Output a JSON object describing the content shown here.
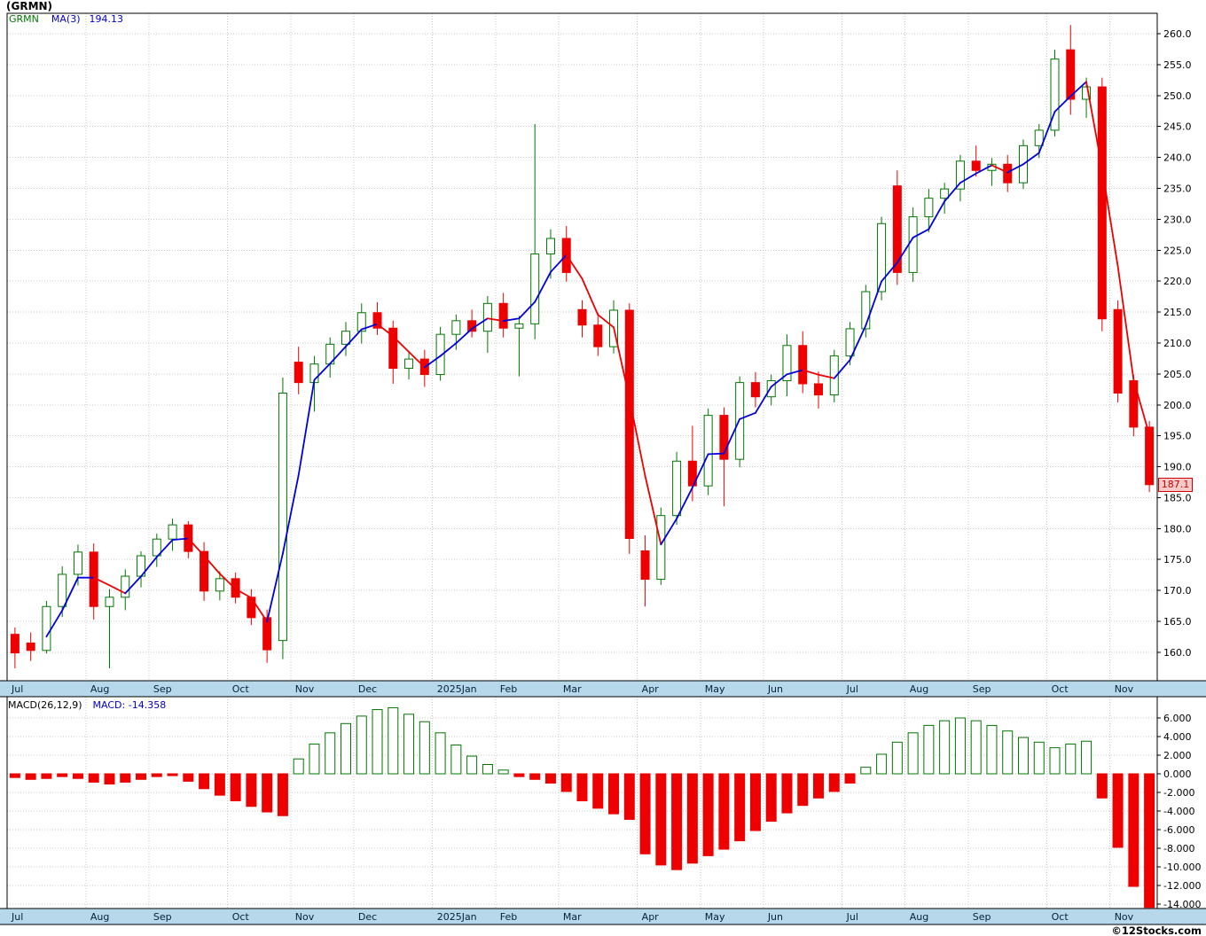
{
  "title": "(GRMN)",
  "watermark": "©12Stocks.com",
  "legend": {
    "symbol": "GRMN",
    "ma_label": "MA(3)",
    "ma_value": "194.13"
  },
  "macd_legend": {
    "label": "MACD(26,12,9)",
    "value_prefix": "MACD:",
    "value": "-14.358"
  },
  "price_tag": {
    "text": "187.1",
    "value": 187.1
  },
  "colors": {
    "up": "#007700",
    "down": "#ee0000",
    "ma_up": "#0000dd",
    "ma_down": "#ee0000",
    "band": "#b7d8ea",
    "band_text": "#05223c",
    "grid": "#c9c9c9",
    "border": "#000000"
  },
  "chart_data": {
    "type": "candlestick",
    "symbol": "GRMN",
    "interval": "weekly",
    "title": "(GRMN)",
    "overlay": "MA(3)",
    "ma_last": 194.13,
    "indicator": "MACD(26,12,9)",
    "macd_last": -14.358,
    "price_axis": {
      "min": 155.4,
      "max": 263.3,
      "ticks": [
        "260.0",
        "255.0",
        "250.0",
        "245.0",
        "240.0",
        "235.0",
        "230.0",
        "225.0",
        "220.0",
        "215.0",
        "210.0",
        "205.0",
        "200.0",
        "195.0",
        "190.0",
        "185.0",
        "180.0",
        "175.0",
        "170.0",
        "165.0",
        "160.0"
      ]
    },
    "macd_axis": {
      "min": -14.5,
      "max": 8.3,
      "ticks": [
        "6.000",
        "4.000",
        "2.000",
        "0.000",
        "-2.000",
        "-4.000",
        "-6.000",
        "-8.000",
        "-10.000",
        "-12.000",
        "-14.000"
      ]
    },
    "months": [
      {
        "label": "Jul",
        "start": 0
      },
      {
        "label": "Aug",
        "start": 5
      },
      {
        "label": "Sep",
        "start": 9
      },
      {
        "label": "Oct",
        "start": 14
      },
      {
        "label": "Nov",
        "start": 18
      },
      {
        "label": "Dec",
        "start": 22
      },
      {
        "label": "2025Jan",
        "start": 27
      },
      {
        "label": "Feb",
        "start": 31
      },
      {
        "label": "Mar",
        "start": 35
      },
      {
        "label": "Apr",
        "start": 40
      },
      {
        "label": "May",
        "start": 44
      },
      {
        "label": "Jun",
        "start": 48
      },
      {
        "label": "Jul",
        "start": 53
      },
      {
        "label": "Aug",
        "start": 57
      },
      {
        "label": "Sep",
        "start": 61
      },
      {
        "label": "Oct",
        "start": 66
      },
      {
        "label": "Nov",
        "start": 70
      }
    ],
    "candles": [
      [
        162.9,
        164.0,
        157.4,
        159.9
      ],
      [
        161.5,
        163.2,
        158.6,
        160.3
      ],
      [
        160.3,
        168.3,
        159.8,
        167.4
      ],
      [
        167.4,
        173.9,
        165.7,
        172.6
      ],
      [
        172.6,
        177.4,
        170.8,
        176.2
      ],
      [
        176.2,
        177.6,
        165.3,
        167.4
      ],
      [
        167.4,
        170.2,
        157.4,
        168.9
      ],
      [
        168.9,
        173.4,
        166.8,
        172.3
      ],
      [
        172.3,
        176.3,
        170.5,
        175.6
      ],
      [
        175.6,
        179.2,
        173.8,
        178.3
      ],
      [
        178.3,
        181.6,
        176.4,
        180.6
      ],
      [
        180.6,
        181.2,
        175.2,
        176.3
      ],
      [
        176.3,
        177.8,
        168.3,
        169.9
      ],
      [
        169.9,
        173.1,
        168.4,
        171.9
      ],
      [
        171.9,
        172.9,
        167.9,
        168.9
      ],
      [
        168.9,
        170.2,
        164.4,
        165.6
      ],
      [
        165.6,
        166.9,
        158.3,
        160.4
      ],
      [
        161.9,
        204.4,
        158.9,
        201.9
      ],
      [
        206.9,
        209.4,
        201.7,
        203.6
      ],
      [
        203.6,
        207.9,
        198.9,
        206.6
      ],
      [
        206.6,
        210.9,
        204.4,
        209.8
      ],
      [
        209.8,
        213.4,
        207.9,
        211.9
      ],
      [
        211.9,
        216.4,
        209.9,
        214.9
      ],
      [
        214.9,
        216.6,
        211.3,
        212.4
      ],
      [
        212.4,
        213.6,
        203.4,
        205.9
      ],
      [
        205.9,
        208.6,
        204.1,
        207.4
      ],
      [
        207.4,
        208.9,
        202.9,
        204.9
      ],
      [
        204.9,
        212.6,
        203.9,
        211.4
      ],
      [
        211.4,
        214.6,
        208.9,
        213.6
      ],
      [
        213.6,
        215.4,
        210.9,
        211.9
      ],
      [
        211.9,
        217.6,
        208.4,
        216.4
      ],
      [
        216.4,
        218.1,
        210.9,
        212.4
      ],
      [
        212.4,
        214.4,
        204.6,
        213.1
      ],
      [
        213.1,
        245.4,
        210.6,
        224.4
      ],
      [
        224.4,
        228.4,
        220.4,
        226.9
      ],
      [
        226.9,
        228.9,
        219.9,
        221.4
      ],
      [
        215.4,
        216.9,
        210.9,
        212.9
      ],
      [
        212.9,
        214.9,
        207.9,
        209.4
      ],
      [
        209.4,
        216.9,
        208.3,
        215.3
      ],
      [
        215.3,
        216.4,
        175.9,
        178.4
      ],
      [
        176.4,
        178.9,
        167.4,
        171.8
      ],
      [
        171.8,
        183.4,
        170.9,
        182.1
      ],
      [
        182.1,
        192.4,
        180.6,
        190.9
      ],
      [
        190.9,
        196.6,
        184.4,
        186.9
      ],
      [
        186.9,
        199.4,
        185.4,
        198.3
      ],
      [
        198.3,
        199.6,
        183.6,
        191.2
      ],
      [
        191.2,
        204.6,
        189.9,
        203.6
      ],
      [
        203.6,
        205.3,
        199.6,
        201.3
      ],
      [
        201.3,
        204.9,
        199.9,
        203.9
      ],
      [
        203.9,
        211.4,
        201.4,
        209.6
      ],
      [
        209.6,
        211.9,
        201.9,
        203.4
      ],
      [
        203.4,
        205.4,
        199.4,
        201.6
      ],
      [
        201.6,
        208.9,
        200.4,
        207.9
      ],
      [
        207.9,
        213.4,
        206.4,
        212.3
      ],
      [
        212.3,
        219.4,
        210.9,
        218.3
      ],
      [
        218.3,
        230.4,
        216.9,
        229.3
      ],
      [
        235.4,
        237.9,
        219.4,
        221.4
      ],
      [
        221.4,
        231.9,
        219.9,
        230.4
      ],
      [
        230.4,
        234.9,
        227.9,
        233.4
      ],
      [
        233.4,
        235.9,
        230.9,
        234.9
      ],
      [
        234.9,
        240.4,
        232.9,
        239.4
      ],
      [
        239.4,
        241.9,
        236.9,
        237.9
      ],
      [
        237.9,
        239.9,
        235.4,
        238.9
      ],
      [
        238.9,
        240.4,
        234.4,
        235.9
      ],
      [
        235.9,
        242.9,
        234.9,
        241.9
      ],
      [
        241.9,
        245.4,
        239.9,
        244.4
      ],
      [
        244.4,
        257.4,
        243.4,
        255.9
      ],
      [
        257.4,
        261.4,
        246.9,
        249.4
      ],
      [
        249.4,
        252.9,
        246.4,
        251.4
      ],
      [
        251.4,
        252.9,
        211.9,
        213.9
      ],
      [
        215.4,
        216.9,
        200.4,
        201.9
      ],
      [
        203.9,
        204.9,
        194.9,
        196.4
      ],
      [
        196.4,
        197.4,
        185.9,
        187.1
      ]
    ],
    "macd": [
      -0.4,
      -0.6,
      -0.5,
      -0.3,
      -0.5,
      -0.9,
      -1.1,
      -0.9,
      -0.6,
      -0.3,
      -0.2,
      -0.8,
      -1.6,
      -2.3,
      -2.9,
      -3.5,
      -4.1,
      -4.5,
      1.6,
      3.2,
      4.4,
      5.4,
      6.2,
      6.9,
      7.1,
      6.4,
      5.6,
      4.4,
      3.1,
      1.9,
      1.0,
      0.4,
      -0.3,
      -0.6,
      -1.0,
      -1.9,
      -2.9,
      -3.7,
      -4.3,
      -4.9,
      -8.6,
      -9.8,
      -10.3,
      -9.6,
      -8.8,
      -8.1,
      -7.2,
      -6.1,
      -5.1,
      -4.2,
      -3.4,
      -2.6,
      -1.9,
      -1.0,
      0.7,
      2.1,
      3.4,
      4.4,
      5.2,
      5.7,
      6.0,
      5.7,
      5.2,
      4.6,
      3.9,
      3.4,
      2.8,
      3.2,
      3.5,
      -2.6,
      -7.9,
      -12.1,
      -14.358
    ]
  }
}
